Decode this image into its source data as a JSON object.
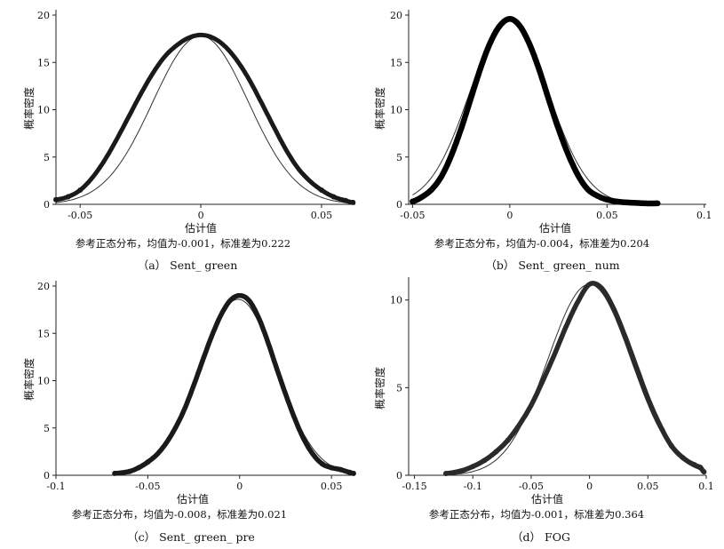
{
  "chart_data": [
    {
      "type": "line",
      "caption": "（a） Sent_ green",
      "xlabel": "估计值",
      "ylabel": "概率密度",
      "note": "参考正态分布，均值为-0.001，标准差为0.222",
      "xlim": [
        -0.06,
        0.064
      ],
      "ylim": [
        0,
        20
      ],
      "xticks": [
        -0.05,
        0,
        0.05
      ],
      "xtick_labels": [
        "-0.05",
        "0",
        "0.05"
      ],
      "yticks": [
        0,
        5,
        10,
        15,
        20
      ],
      "ytick_labels": [
        "0",
        "5",
        "10",
        "15",
        "20"
      ],
      "density": {
        "x": [
          -0.06,
          -0.055,
          -0.05,
          -0.045,
          -0.04,
          -0.035,
          -0.03,
          -0.025,
          -0.02,
          -0.015,
          -0.01,
          -0.005,
          0,
          0.005,
          0.01,
          0.015,
          0.02,
          0.025,
          0.03,
          0.035,
          0.04,
          0.045,
          0.05,
          0.055,
          0.06,
          0.063
        ],
        "y": [
          0.5,
          0.8,
          1.5,
          2.8,
          4.6,
          6.8,
          9.2,
          11.6,
          13.8,
          15.6,
          16.8,
          17.6,
          17.9,
          17.6,
          16.7,
          15.2,
          13.2,
          10.8,
          8.3,
          5.9,
          3.9,
          2.5,
          1.5,
          0.8,
          0.4,
          0.2
        ]
      },
      "reference_normal": {
        "mean": -0.001,
        "sd": 0.222,
        "peak": 17.8
      },
      "range": [
        -0.06,
        0.063
      ]
    },
    {
      "type": "line",
      "caption": "（b） Sent_ green_ num",
      "xlabel": "估计值",
      "ylabel": "概率密度",
      "note": "参考正态分布，均值为-0.004，标准差为0.204",
      "xlim": [
        -0.052,
        0.101
      ],
      "ylim": [
        0,
        20
      ],
      "xticks": [
        -0.05,
        0,
        0.05,
        0.1
      ],
      "xtick_labels": [
        "-0.05",
        "0",
        "0.05",
        "0.1"
      ],
      "yticks": [
        0,
        5,
        10,
        15,
        20
      ],
      "ytick_labels": [
        "0",
        "5",
        "10",
        "15",
        "20"
      ],
      "density": {
        "x": [
          -0.05,
          -0.045,
          -0.04,
          -0.035,
          -0.03,
          -0.025,
          -0.02,
          -0.015,
          -0.01,
          -0.005,
          0,
          0.005,
          0.01,
          0.015,
          0.02,
          0.025,
          0.03,
          0.035,
          0.04,
          0.045,
          0.05,
          0.055,
          0.06,
          0.065,
          0.07,
          0.076
        ],
        "y": [
          0.3,
          0.8,
          1.6,
          3.0,
          5.2,
          8.0,
          11.2,
          14.4,
          17.1,
          18.9,
          19.6,
          18.9,
          17.0,
          14.3,
          11.1,
          8.0,
          5.3,
          3.1,
          1.6,
          0.9,
          0.5,
          0.3,
          0.2,
          0.15,
          0.1,
          0.1
        ]
      },
      "reference_normal": {
        "mean": -0.004,
        "sd": 0.204,
        "peak": 19.4
      },
      "range": [
        -0.05,
        0.076
      ]
    },
    {
      "type": "line",
      "caption": "（c） Sent_ green_ pre",
      "xlabel": "估计值",
      "ylabel": "概率密度",
      "note": "参考正态分布，均值为-0.008，标准差为0.021",
      "xlim": [
        -0.1,
        0.063
      ],
      "ylim": [
        0,
        20
      ],
      "xticks": [
        -0.1,
        -0.05,
        0,
        0.05
      ],
      "xtick_labels": [
        "-0.1",
        "-0.05",
        "0",
        "0.05"
      ],
      "yticks": [
        0,
        5,
        10,
        15,
        20
      ],
      "ytick_labels": [
        "0",
        "5",
        "10",
        "15",
        "20"
      ],
      "density": {
        "x": [
          -0.068,
          -0.06,
          -0.055,
          -0.05,
          -0.045,
          -0.04,
          -0.035,
          -0.03,
          -0.025,
          -0.02,
          -0.015,
          -0.01,
          -0.005,
          0,
          0.005,
          0.01,
          0.015,
          0.02,
          0.025,
          0.03,
          0.035,
          0.04,
          0.045,
          0.05,
          0.055,
          0.06,
          0.062
        ],
        "y": [
          0.2,
          0.4,
          0.8,
          1.4,
          2.2,
          3.4,
          5.0,
          7.0,
          9.5,
          12.2,
          14.8,
          17.0,
          18.5,
          19.0,
          18.5,
          16.8,
          14.3,
          11.4,
          8.6,
          6.0,
          3.8,
          2.2,
          1.2,
          0.8,
          0.6,
          0.3,
          0.2
        ]
      },
      "reference_normal": {
        "mean": -0.008,
        "sd": 0.021,
        "peak": 18.6
      },
      "range": [
        -0.068,
        0.062
      ]
    },
    {
      "type": "line",
      "caption": "（d） FOG",
      "xlabel": "估计值",
      "ylabel": "概率密度",
      "note": "参考正态分布，均值为-0.001，标准差为0.364",
      "xlim": [
        -0.155,
        0.1
      ],
      "ylim": [
        0,
        11
      ],
      "xticks": [
        -0.15,
        -0.1,
        -0.05,
        0,
        0.05,
        0.1
      ],
      "xtick_labels": [
        "-0.15",
        "-0.1",
        "-0.05",
        "0",
        "0.05",
        "0.1"
      ],
      "yticks": [
        0,
        5,
        10
      ],
      "ytick_labels": [
        "0",
        "5",
        "10"
      ],
      "density": {
        "x": [
          -0.123,
          -0.11,
          -0.1,
          -0.09,
          -0.08,
          -0.07,
          -0.06,
          -0.05,
          -0.04,
          -0.03,
          -0.02,
          -0.01,
          0,
          0.01,
          0.02,
          0.03,
          0.04,
          0.05,
          0.06,
          0.07,
          0.08,
          0.09,
          0.095,
          0.098
        ],
        "y": [
          0.1,
          0.25,
          0.5,
          0.85,
          1.35,
          2.0,
          2.9,
          4.0,
          5.4,
          6.9,
          8.5,
          9.9,
          10.9,
          10.7,
          9.6,
          8.0,
          6.2,
          4.4,
          2.9,
          1.7,
          1.0,
          0.6,
          0.45,
          0.2
        ]
      },
      "reference_normal": {
        "mean": -0.001,
        "sd": 0.364,
        "peak": 10.9
      },
      "range": [
        -0.123,
        0.098
      ]
    }
  ]
}
